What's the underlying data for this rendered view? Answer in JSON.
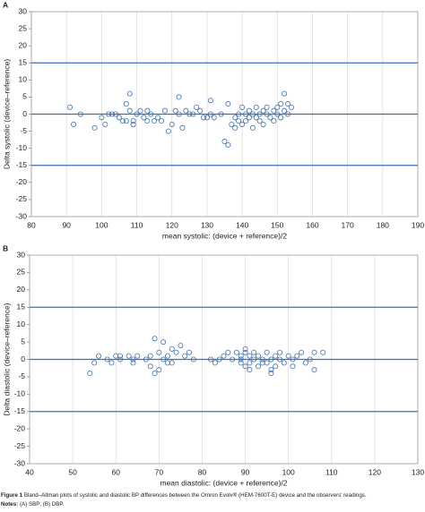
{
  "chart_data": [
    {
      "type": "scatter",
      "label": "A",
      "xlabel": "mean systolic: (device + reference)/2",
      "ylabel": "Delta systolic (device–reference)",
      "x": [
        91,
        92,
        94,
        98,
        100,
        101,
        102,
        103,
        104,
        105,
        106,
        107,
        107,
        108,
        108,
        109,
        109,
        110,
        111,
        112,
        113,
        113,
        114,
        115,
        116,
        117,
        118,
        119,
        120,
        121,
        122,
        122,
        123,
        124,
        125,
        126,
        127,
        128,
        129,
        130,
        131,
        131,
        132,
        134,
        135,
        136,
        136,
        137,
        138,
        138,
        139,
        139,
        140,
        140,
        141,
        141,
        142,
        142,
        143,
        143,
        144,
        144,
        145,
        145,
        146,
        146,
        147,
        147,
        148,
        149,
        149,
        150,
        150,
        151,
        151,
        152,
        152,
        153,
        153,
        154
      ],
      "values": [
        2,
        -3,
        0,
        -4,
        -1,
        -3,
        0,
        0,
        0,
        -1,
        -2,
        3,
        -2,
        6,
        1,
        -2,
        -3,
        0,
        1,
        -1,
        1,
        -2,
        0,
        -2,
        -1,
        -2,
        1,
        -5,
        -3,
        1,
        5,
        0,
        -4,
        1,
        0,
        0,
        2,
        1,
        -1,
        -1,
        4,
        0,
        -1,
        0,
        -8,
        -9,
        3,
        -3,
        -1,
        -4,
        0,
        -2,
        2,
        -3,
        0,
        -2,
        1,
        -1,
        0,
        -4,
        2,
        -1,
        0,
        -2,
        1,
        -3,
        0,
        2,
        -1,
        1,
        -2,
        2,
        0,
        3,
        -1,
        6,
        1,
        3,
        0,
        2
      ],
      "xlim": [
        80,
        190
      ],
      "ylim": [
        -30,
        30
      ],
      "xticks": [
        80,
        90,
        100,
        110,
        120,
        130,
        140,
        150,
        160,
        170,
        180,
        190
      ],
      "yticks": [
        30,
        25,
        20,
        15,
        10,
        5,
        0,
        -5,
        -10,
        -15,
        -20,
        -25,
        -30
      ],
      "hlines": [
        15,
        0,
        -15
      ],
      "grid": "x",
      "color": "#3a70b5"
    },
    {
      "type": "scatter",
      "label": "B",
      "xlabel": "mean diastolic: (device + reference)/2",
      "ylabel": "Delta diastolic (device–reference)",
      "x": [
        54,
        55,
        56,
        58,
        59,
        60,
        61,
        61,
        63,
        64,
        64,
        65,
        67,
        68,
        68,
        69,
        69,
        70,
        70,
        71,
        71,
        72,
        72,
        73,
        73,
        74,
        75,
        76,
        77,
        78,
        82,
        83,
        84,
        85,
        86,
        87,
        88,
        89,
        89,
        89,
        90,
        90,
        90,
        91,
        91,
        91,
        92,
        92,
        93,
        93,
        94,
        94,
        95,
        95,
        96,
        96,
        96,
        97,
        97,
        98,
        98,
        99,
        100,
        101,
        101,
        102,
        103,
        104,
        105,
        106,
        106,
        108
      ],
      "values": [
        -4,
        -1,
        1,
        0,
        -1,
        1,
        0,
        1,
        1,
        -1,
        0,
        1,
        0,
        -2,
        1,
        6,
        -4,
        -3,
        2,
        0,
        5,
        1,
        -1,
        3,
        -1,
        2,
        4,
        1,
        2,
        0,
        0,
        -1,
        0,
        1,
        2,
        0,
        2,
        0,
        -1,
        1,
        3,
        -2,
        2,
        1,
        -1,
        -3,
        0,
        2,
        -2,
        1,
        0,
        -1,
        2,
        -1,
        -4,
        -3,
        0,
        1,
        -2,
        0,
        2,
        -1,
        1,
        0,
        -2,
        1,
        2,
        -1,
        0,
        -3,
        2,
        2
      ],
      "xlim": [
        40,
        130
      ],
      "ylim": [
        -30,
        30
      ],
      "xticks": [
        40,
        50,
        60,
        70,
        80,
        90,
        100,
        110,
        120,
        130
      ],
      "yticks": [
        30,
        25,
        20,
        15,
        10,
        5,
        0,
        -5,
        -10,
        -15,
        -20,
        -25,
        -30
      ],
      "hlines": [
        15,
        0,
        -15
      ],
      "grid": "x",
      "color": "#3a70b5"
    }
  ],
  "caption": {
    "figure_label": "Figure 1",
    "text": "Bland–Altman plots of systolic and diastolic BP differences between the Omron Evolv® (HEM-7600T-E) device and the observers' readings.",
    "notes_label": "Notes:",
    "notes": "(A) SBP; (B) DBP."
  }
}
